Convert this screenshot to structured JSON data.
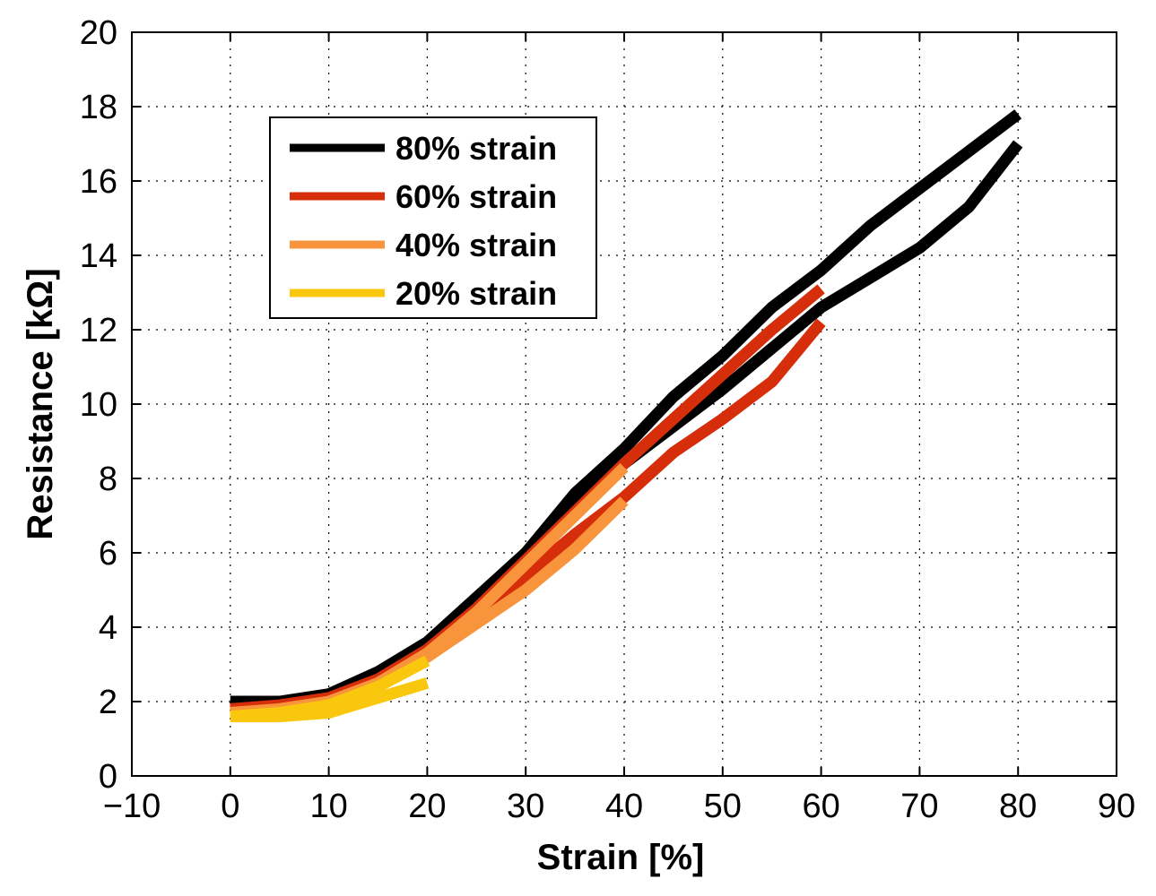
{
  "chart_data": {
    "type": "line",
    "title": "",
    "xlabel": "Strain [%]",
    "ylabel": "Resistance [kΩ]",
    "xlim": [
      -10,
      90
    ],
    "ylim": [
      0,
      20
    ],
    "xticks": [
      -10,
      0,
      10,
      20,
      30,
      40,
      50,
      60,
      70,
      80,
      90
    ],
    "yticks": [
      0,
      2,
      4,
      6,
      8,
      10,
      12,
      14,
      16,
      18,
      20
    ],
    "xtick_labels": [
      "−10",
      "0",
      "10",
      "20",
      "30",
      "40",
      "50",
      "60",
      "70",
      "80",
      "90"
    ],
    "ytick_labels": [
      "0",
      "2",
      "4",
      "6",
      "8",
      "10",
      "12",
      "14",
      "16",
      "18",
      "20"
    ],
    "grid": true,
    "legend_position": "upper-left",
    "series": [
      {
        "name": "80% strain",
        "color": "#000000",
        "loading": {
          "x": [
            0,
            5,
            10,
            15,
            20,
            25,
            30,
            35,
            40,
            45,
            50,
            55,
            60,
            65,
            70,
            75,
            80
          ],
          "y": [
            2.0,
            2.0,
            2.2,
            2.8,
            3.6,
            4.8,
            6.0,
            7.6,
            8.8,
            10.2,
            11.3,
            12.6,
            13.6,
            14.8,
            15.8,
            16.8,
            17.8
          ]
        },
        "unloading": {
          "x": [
            80,
            75,
            70,
            65,
            60,
            55,
            50,
            45,
            40,
            35,
            30,
            25,
            20,
            15,
            10,
            5,
            0
          ],
          "y": [
            17.0,
            15.3,
            14.2,
            13.4,
            12.6,
            11.5,
            10.4,
            9.4,
            8.4,
            7.2,
            5.8,
            4.6,
            3.5,
            2.7,
            2.1,
            1.9,
            1.9
          ]
        }
      },
      {
        "name": "60% strain",
        "color": "#D62D0A",
        "loading": {
          "x": [
            0,
            5,
            10,
            15,
            20,
            25,
            30,
            35,
            40,
            45,
            50,
            55,
            60
          ],
          "y": [
            1.8,
            1.9,
            2.1,
            2.6,
            3.4,
            4.5,
            5.8,
            7.1,
            8.4,
            9.6,
            10.8,
            12.0,
            13.1
          ]
        },
        "unloading": {
          "x": [
            60,
            55,
            50,
            45,
            40,
            35,
            30,
            25,
            20,
            15,
            10,
            5,
            0
          ],
          "y": [
            12.2,
            10.6,
            9.6,
            8.7,
            7.5,
            6.5,
            5.4,
            4.3,
            3.3,
            2.5,
            2.0,
            1.8,
            1.8
          ]
        }
      },
      {
        "name": "40% strain",
        "color": "#F7943C",
        "loading": {
          "x": [
            0,
            5,
            10,
            15,
            20,
            25,
            30,
            35,
            40
          ],
          "y": [
            1.7,
            1.8,
            2.0,
            2.5,
            3.3,
            4.4,
            5.7,
            7.0,
            8.3
          ]
        },
        "unloading": {
          "x": [
            40,
            35,
            30,
            25,
            20,
            15,
            10,
            5,
            0
          ],
          "y": [
            7.4,
            6.1,
            5.0,
            4.1,
            3.2,
            2.4,
            1.9,
            1.7,
            1.7
          ]
        }
      },
      {
        "name": "20% strain",
        "color": "#F9C80E",
        "loading": {
          "x": [
            0,
            5,
            10,
            15,
            20
          ],
          "y": [
            1.6,
            1.7,
            1.9,
            2.4,
            3.1
          ]
        },
        "unloading": {
          "x": [
            20,
            15,
            10,
            5,
            0
          ],
          "y": [
            2.5,
            2.1,
            1.7,
            1.6,
            1.6
          ]
        }
      }
    ]
  }
}
